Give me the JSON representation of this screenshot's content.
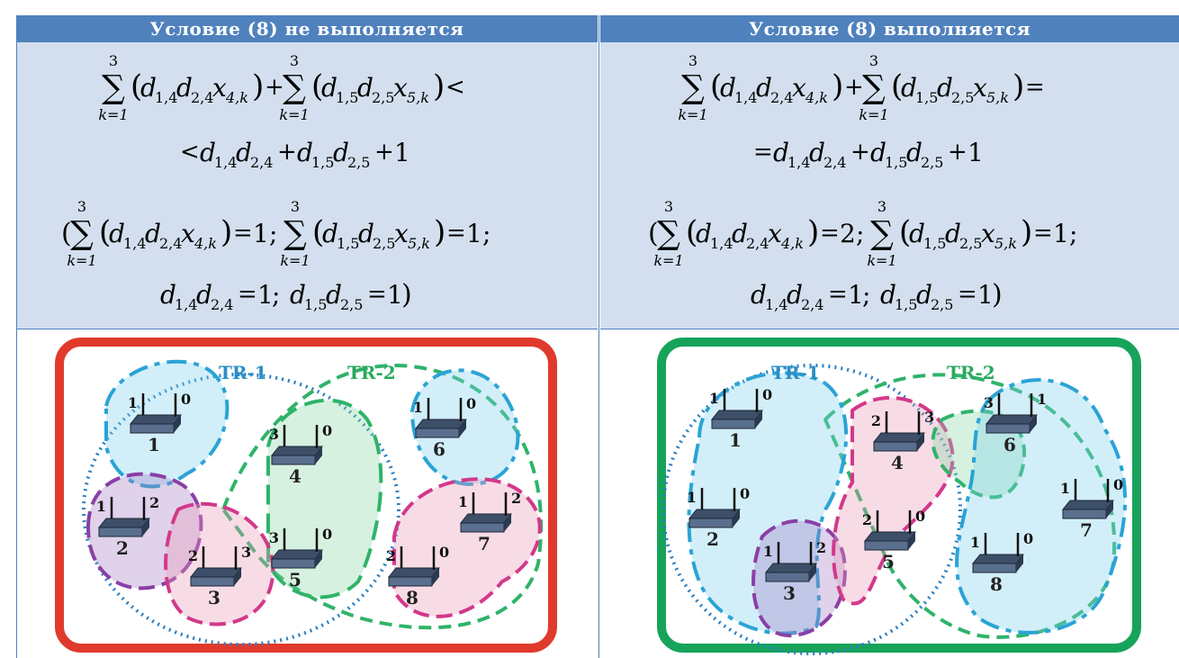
{
  "headers": {
    "left": "Условие (8) не выполняется",
    "right": "Условие (8) выполняется"
  },
  "formula_tokens": {
    "sum": "∑",
    "upper": "3",
    "lower": "k=1",
    "lparen": "(",
    "rparen": ")",
    "plus": "+",
    "d": "d",
    "x": "x",
    "sub14": "1,4",
    "sub24": "2,4",
    "sub15": "1,5",
    "sub25": "2,5",
    "sub4k": "4,k",
    "sub5k": "5,k",
    "less": "<",
    "eq": "=",
    "one": "1",
    "two": "2",
    "semi": ";",
    "open_group": "(",
    "close_group": ")"
  },
  "diagram": {
    "tr1": "TR-1",
    "tr2": "TR-2",
    "left_routers": [
      {
        "id": "1",
        "left_port": "1",
        "right_port": "0"
      },
      {
        "id": "2",
        "left_port": "1",
        "right_port": "2"
      },
      {
        "id": "3",
        "left_port": "2",
        "right_port": "3"
      },
      {
        "id": "4",
        "left_port": "3",
        "right_port": "0"
      },
      {
        "id": "5",
        "left_port": "3",
        "right_port": "0"
      },
      {
        "id": "6",
        "left_port": "1",
        "right_port": "0"
      },
      {
        "id": "7",
        "left_port": "1",
        "right_port": "2"
      },
      {
        "id": "8",
        "left_port": "2",
        "right_port": "0"
      }
    ],
    "right_routers": [
      {
        "id": "1",
        "left_port": "1",
        "right_port": "0"
      },
      {
        "id": "2",
        "left_port": "1",
        "right_port": "0"
      },
      {
        "id": "3",
        "left_port": "1",
        "right_port": "2"
      },
      {
        "id": "4",
        "left_port": "2",
        "right_port": "3"
      },
      {
        "id": "5",
        "left_port": "2",
        "right_port": "0"
      },
      {
        "id": "6",
        "left_port": "3",
        "right_port": "1"
      },
      {
        "id": "7",
        "left_port": "1",
        "right_port": "0"
      },
      {
        "id": "8",
        "left_port": "1",
        "right_port": "0"
      }
    ]
  },
  "colors": {
    "header_bg": "#4f81bd",
    "formula_bg": "#d3dfee",
    "red_frame": "#e03a2c",
    "green_frame": "#17a35a",
    "blue_cluster": "#2aa3d6",
    "green_cluster": "#2fb36a",
    "pink_cluster": "#d2398a",
    "purple_cluster": "#8a3fa6",
    "tr1_dotted": "#2a7fc1"
  }
}
